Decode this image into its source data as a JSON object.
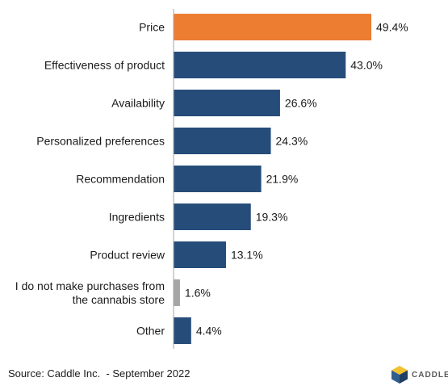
{
  "chart_data": {
    "type": "bar",
    "orientation": "horizontal",
    "categories": [
      "Price",
      "Effectiveness of product",
      "Availability",
      "Personalized preferences",
      "Recommendation",
      "Ingredients",
      "Product review",
      "I do not make purchases from the cannabis store",
      "Other"
    ],
    "category_lines": [
      [
        "Price"
      ],
      [
        "Effectiveness of product"
      ],
      [
        "Availability"
      ],
      [
        "Personalized preferences"
      ],
      [
        "Recommendation"
      ],
      [
        "Ingredients"
      ],
      [
        "Product review"
      ],
      [
        "I do not make purchases from",
        "the cannabis store"
      ],
      [
        "Other"
      ]
    ],
    "values": [
      49.4,
      43.0,
      26.6,
      24.3,
      21.9,
      19.3,
      13.1,
      1.6,
      4.4
    ],
    "value_labels": [
      "49.4%",
      "43.0%",
      "26.6%",
      "24.3%",
      "21.9%",
      "19.3%",
      "13.1%",
      "1.6%",
      "4.4%"
    ],
    "bar_colors": [
      "#ED7D31",
      "#264D7A",
      "#264D7A",
      "#264D7A",
      "#264D7A",
      "#264D7A",
      "#264D7A",
      "#A6A6A6",
      "#264D7A"
    ],
    "xlim": [
      0,
      50
    ],
    "unit": "%",
    "grid": false,
    "legend": "none",
    "title": "",
    "xlabel": "",
    "ylabel": ""
  },
  "footer": {
    "source": "Source: Caddle Inc.  - September 2022",
    "logo_text": "CADDLE"
  },
  "colors": {
    "highlight": "#ED7D31",
    "primary": "#264D7A",
    "muted": "#A6A6A6",
    "axis": "#A6A6A6",
    "logo_yellow": "#F2C12E",
    "logo_blue": "#2F5E8E",
    "logo_dark": "#1F3F63"
  }
}
